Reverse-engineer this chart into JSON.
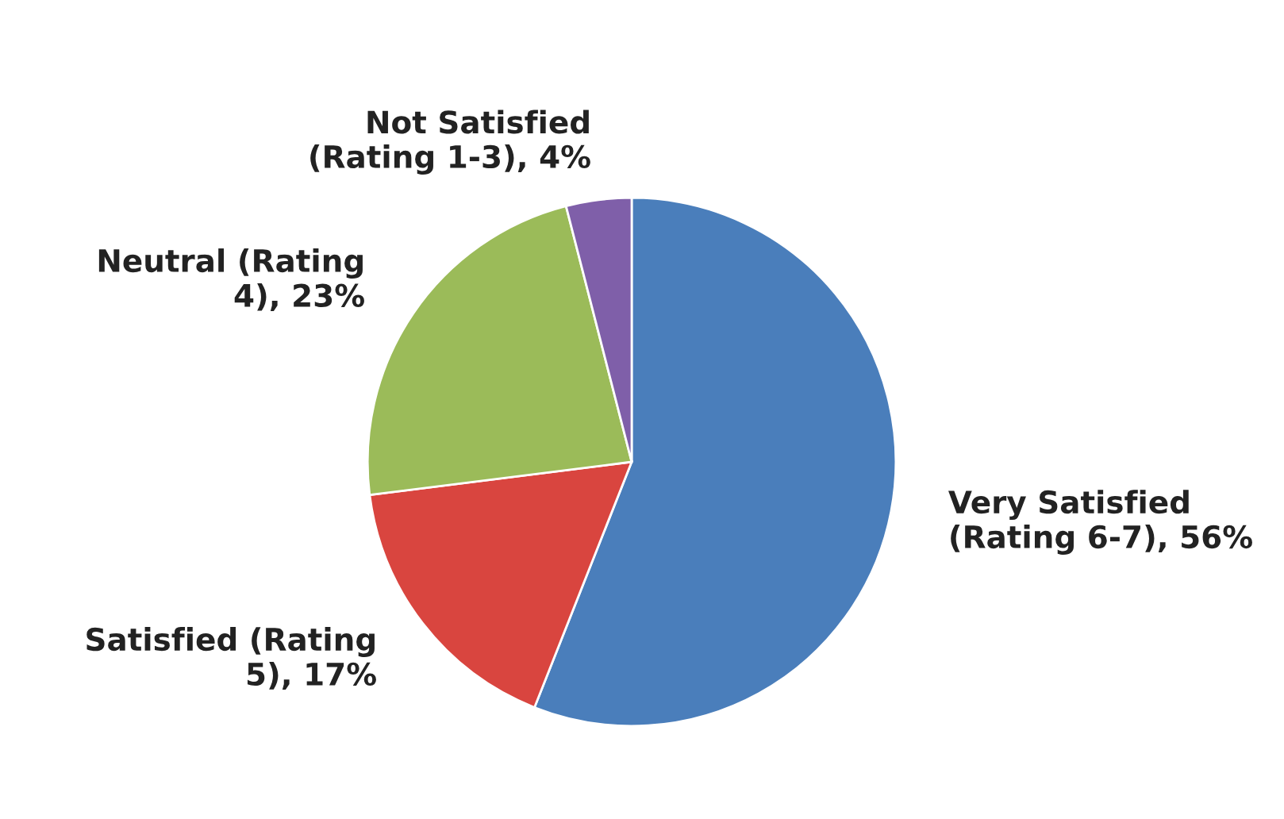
{
  "chart_data": {
    "type": "pie",
    "categories": [
      "Very Satisfied (Rating 6-7)",
      "Satisfied (Rating 5)",
      "Neutral (Rating 4)",
      "Not Satisfied (Rating 1-3)"
    ],
    "values": [
      56,
      17,
      23,
      4
    ],
    "value_labels": [
      "56%",
      "17%",
      "23%",
      "4%"
    ],
    "colors": [
      "#4a7ebb",
      "#d9453f",
      "#9bbb59",
      "#7f5fa9"
    ]
  }
}
